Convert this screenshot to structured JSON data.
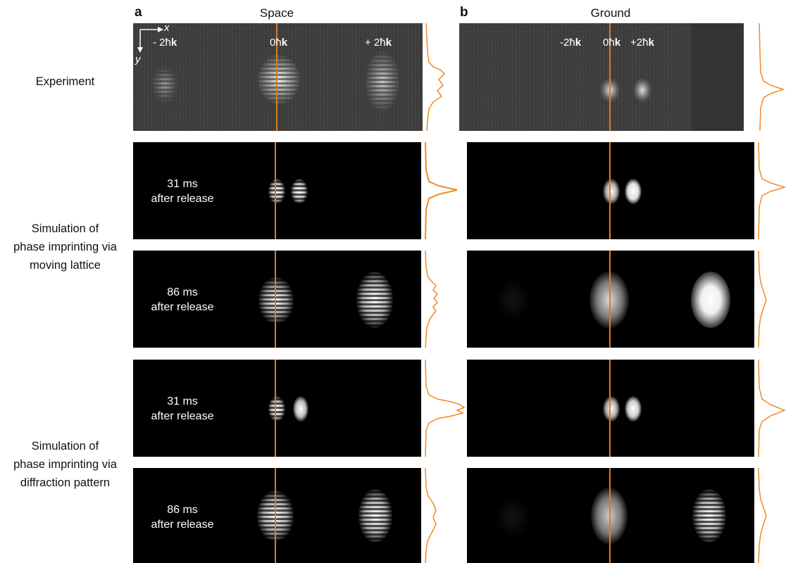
{
  "columns": {
    "a": {
      "letter": "a",
      "title": "Space"
    },
    "b": {
      "letter": "b",
      "title": "Ground"
    }
  },
  "rows": {
    "experiment": "Experiment",
    "sim_lattice_1": "Simulation of",
    "sim_lattice_2": "phase imprinting via",
    "sim_lattice_3": "moving lattice",
    "sim_diff_1": "Simulation of",
    "sim_diff_2": "phase imprinting via",
    "sim_diff_3": "diffraction pattern"
  },
  "axes": {
    "x": "x",
    "y": "y"
  },
  "orders_a": {
    "minus": "- 2ħ",
    "zero": "0ħ",
    "plus": "+ 2ħ",
    "k": "k"
  },
  "orders_b": {
    "minus": "-2ħ",
    "zero": "0ħ",
    "plus": "+2ħ",
    "k": "k"
  },
  "times": {
    "t31_a": "31 ms",
    "t31_b": "after release",
    "t86_a": "86 ms",
    "t86_b": "after release"
  },
  "colors": {
    "marker_line": "#e07a20",
    "profile": "#f08a24",
    "panel_bg": "#000000"
  }
}
